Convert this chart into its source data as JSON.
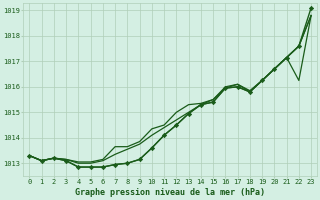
{
  "title": "Graphe pression niveau de la mer (hPa)",
  "bg_color": "#d4efe3",
  "grid_color": "#b0cfb8",
  "line_color": "#1a5c1a",
  "marker_color": "#1a5c1a",
  "x_labels": [
    0,
    1,
    2,
    3,
    4,
    5,
    6,
    7,
    8,
    9,
    10,
    11,
    12,
    13,
    14,
    15,
    16,
    17,
    18,
    19,
    20,
    21,
    22,
    23
  ],
  "ylim": [
    1012.5,
    1019.3
  ],
  "yticks": [
    1013,
    1014,
    1015,
    1016,
    1017,
    1018,
    1019
  ],
  "series": [
    {
      "y": [
        1013.3,
        1013.1,
        1013.2,
        1013.1,
        1012.85,
        1012.85,
        1012.85,
        1012.95,
        1013.0,
        1013.15,
        1013.6,
        1014.1,
        1014.5,
        1014.95,
        1015.3,
        1015.4,
        1015.95,
        1016.0,
        1015.8,
        1016.25,
        1016.7,
        1017.15,
        1017.6,
        1019.1
      ],
      "has_markers": true,
      "lw": 1.0
    },
    {
      "y": [
        1013.3,
        1013.1,
        1013.2,
        1013.1,
        1012.85,
        1012.85,
        1012.85,
        1012.95,
        1013.0,
        1013.15,
        1013.6,
        1014.1,
        1014.5,
        1014.95,
        1015.3,
        1015.4,
        1015.95,
        1016.0,
        1015.8,
        1016.25,
        1016.7,
        1017.15,
        1017.6,
        1018.8
      ],
      "has_markers": false,
      "lw": 0.9
    },
    {
      "y": [
        1013.3,
        1013.1,
        1013.2,
        1013.15,
        1013.0,
        1013.0,
        1013.1,
        1013.35,
        1013.55,
        1013.75,
        1014.1,
        1014.4,
        1014.7,
        1015.0,
        1015.3,
        1015.5,
        1015.95,
        1016.1,
        1015.8,
        1016.25,
        1016.7,
        1017.15,
        1016.25,
        1018.8
      ],
      "has_markers": false,
      "lw": 0.9
    },
    {
      "y": [
        1013.3,
        1013.1,
        1013.2,
        1013.15,
        1013.05,
        1013.05,
        1013.15,
        1013.65,
        1013.65,
        1013.85,
        1014.35,
        1014.5,
        1015.0,
        1015.3,
        1015.35,
        1015.5,
        1016.0,
        1016.1,
        1015.85,
        1016.25,
        1016.7,
        1017.15,
        1017.6,
        1018.8
      ],
      "has_markers": false,
      "lw": 0.9
    }
  ]
}
